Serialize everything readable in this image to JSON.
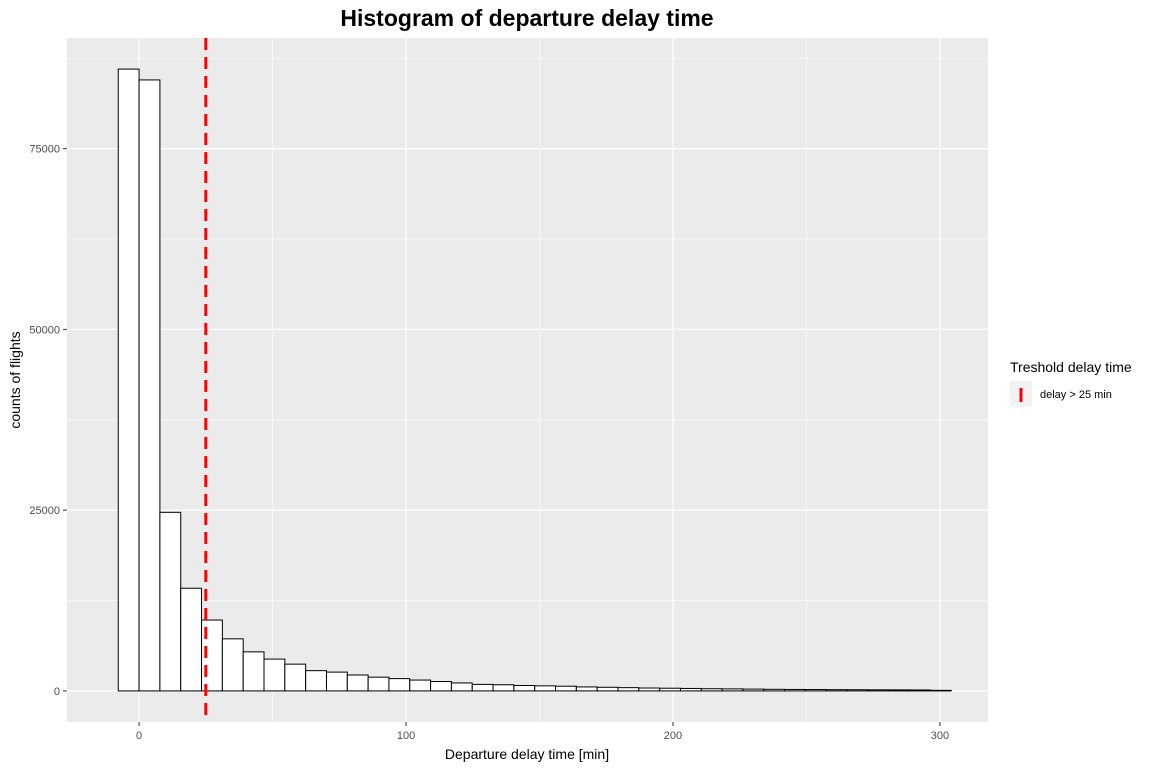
{
  "chart_data": {
    "type": "bar",
    "title": "Histogram of departure delay time",
    "xlabel": "Departure delay time [min]",
    "ylabel": "counts of flights",
    "bin_width": 7.8,
    "bins": [
      {
        "x": -3.9,
        "count": 86000
      },
      {
        "x": 3.9,
        "count": 84500
      },
      {
        "x": 11.7,
        "count": 24700
      },
      {
        "x": 19.5,
        "count": 14200
      },
      {
        "x": 27.3,
        "count": 9800
      },
      {
        "x": 35.1,
        "count": 7200
      },
      {
        "x": 42.9,
        "count": 5400
      },
      {
        "x": 50.7,
        "count": 4400
      },
      {
        "x": 58.5,
        "count": 3700
      },
      {
        "x": 66.3,
        "count": 2800
      },
      {
        "x": 74.1,
        "count": 2600
      },
      {
        "x": 81.9,
        "count": 2200
      },
      {
        "x": 89.7,
        "count": 1900
      },
      {
        "x": 97.5,
        "count": 1700
      },
      {
        "x": 105.3,
        "count": 1500
      },
      {
        "x": 113.1,
        "count": 1300
      },
      {
        "x": 120.9,
        "count": 1100
      },
      {
        "x": 128.7,
        "count": 900
      },
      {
        "x": 136.5,
        "count": 850
      },
      {
        "x": 144.3,
        "count": 750
      },
      {
        "x": 152.1,
        "count": 700
      },
      {
        "x": 159.9,
        "count": 650
      },
      {
        "x": 167.7,
        "count": 550
      },
      {
        "x": 175.5,
        "count": 500
      },
      {
        "x": 183.3,
        "count": 450
      },
      {
        "x": 191.1,
        "count": 400
      },
      {
        "x": 198.9,
        "count": 370
      },
      {
        "x": 206.7,
        "count": 340
      },
      {
        "x": 214.5,
        "count": 300
      },
      {
        "x": 222.3,
        "count": 280
      },
      {
        "x": 230.1,
        "count": 250
      },
      {
        "x": 237.9,
        "count": 220
      },
      {
        "x": 245.7,
        "count": 200
      },
      {
        "x": 253.5,
        "count": 190
      },
      {
        "x": 261.3,
        "count": 170
      },
      {
        "x": 269.1,
        "count": 160
      },
      {
        "x": 276.9,
        "count": 150
      },
      {
        "x": 284.7,
        "count": 140
      },
      {
        "x": 292.5,
        "count": 130
      },
      {
        "x": 300.3,
        "count": 80
      }
    ],
    "xlim": [
      -27,
      318
    ],
    "ylim": [
      -4300,
      90300
    ],
    "x_ticks": [
      0,
      100,
      200,
      300
    ],
    "x_tick_labels": [
      "0",
      "100",
      "200",
      "300"
    ],
    "y_ticks": [
      0,
      25000,
      50000,
      75000
    ],
    "y_tick_labels": [
      "0",
      "25000",
      "50000",
      "75000"
    ],
    "x_minor_ticks": [
      -50,
      50,
      150,
      250
    ],
    "y_minor_ticks": [
      12500,
      37500,
      62500,
      87500
    ],
    "grid": true,
    "threshold": {
      "x": 25,
      "color": "#ff0000",
      "style": "dashed"
    },
    "legend": {
      "title": "Treshold delay time",
      "placement": "right",
      "entries": [
        {
          "label": "delay > 25 min",
          "color": "#ff0000"
        }
      ]
    },
    "colors": {
      "panel_background": "#ebebeb",
      "grid": "#ffffff",
      "bar_fill": "#ffffff",
      "bar_outline": "#000000"
    }
  }
}
